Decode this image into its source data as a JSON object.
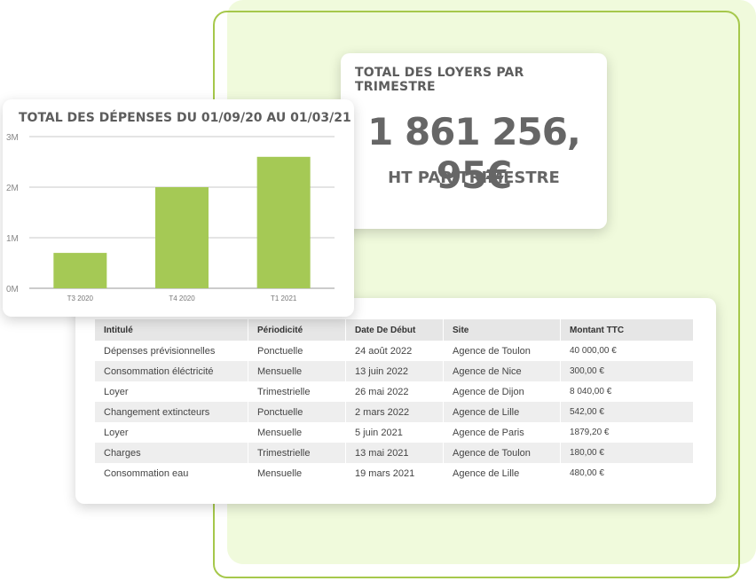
{
  "loyers": {
    "title": "TOTAL DES LOYERS PAR TRIMESTRE",
    "amount": "1 861 256, 95€",
    "subtitle": "HT PAR TRIMESTRE"
  },
  "chart_data": {
    "type": "bar",
    "title": "TOTAL DES DÉPENSES DU 01/09/20 AU 01/03/21",
    "categories": [
      "T3 2020",
      "T4 2020",
      "T1 2021"
    ],
    "values": [
      700000,
      2000000,
      2600000
    ],
    "ylim": [
      0,
      3000000
    ],
    "y_ticks": [
      {
        "value": 3000000,
        "label": "3M"
      },
      {
        "value": 2000000,
        "label": "2M"
      },
      {
        "value": 1000000,
        "label": "1M"
      },
      {
        "value": 0,
        "label": "0M"
      }
    ],
    "grid": true,
    "bar_color": "#a5c955"
  },
  "table": {
    "headers": [
      "Intitulé",
      "Périodicité",
      "Date De Début",
      "Site",
      "Montant TTC"
    ],
    "rows": [
      [
        "Dépenses prévisionnelles",
        "Ponctuelle",
        "24 août 2022",
        "Agence de Toulon",
        "40 000,00 €"
      ],
      [
        "Consommation éléctricité",
        "Mensuelle",
        "13 juin 2022",
        "Agence de Nice",
        "300,00 €"
      ],
      [
        "Loyer",
        "Trimestrielle",
        "26 mai 2022",
        "Agence de Dijon",
        "8 040,00 €"
      ],
      [
        "Changement extincteurs",
        "Ponctuelle",
        "2 mars 2022",
        "Agence de Lille",
        "542,00 €"
      ],
      [
        "Loyer",
        "Mensuelle",
        "5 juin 2021",
        "Agence de Paris",
        "1879,20 €"
      ],
      [
        "Charges",
        "Trimestrielle",
        "13 mai 2021",
        "Agence de Toulon",
        "180,00 €"
      ],
      [
        "Consommation eau",
        "Mensuelle",
        "19 mars 2021",
        "Agence de Lille",
        "480,00 €"
      ]
    ]
  },
  "colors": {
    "panel_fill": "#f0fadc",
    "panel_border": "#a6c84b",
    "bar": "#a5c955"
  }
}
